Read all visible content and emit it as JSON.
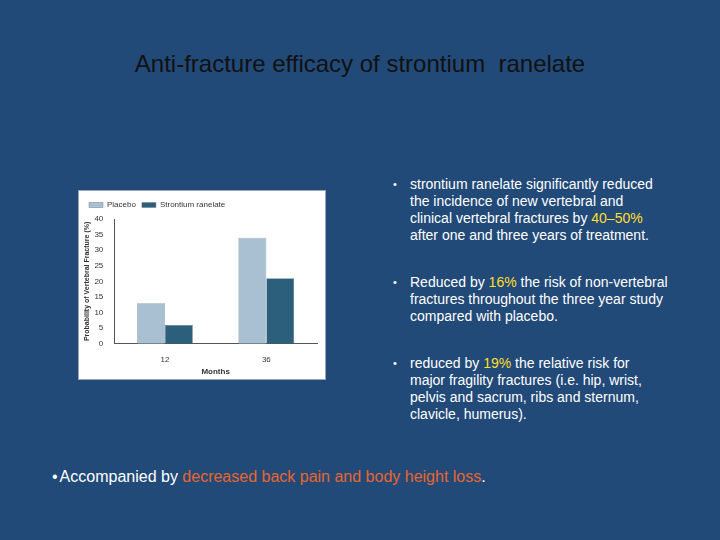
{
  "slide": {
    "title": "Anti-fracture efficacy of strontium  ranelate",
    "bullets": [
      [
        "strontium ranelate significantly reduced the incidence of new vertebral and clinical vertebral fractures by ",
        "40–50%",
        " after one and three years of treatment."
      ],
      [
        "Reduced by ",
        "16%",
        " the risk of non-vertebral fractures throughout the three year study compared with placebo."
      ],
      [
        "reduced by ",
        "19%",
        " the relative risk for major fragility fractures (i.e. hip, wrist, pelvis and sacrum, ribs and sternum, clavicle, humerus)."
      ]
    ],
    "footer": [
      "Accompanied by ",
      "decreased back pain and body height loss",
      "."
    ]
  },
  "chart_data": {
    "type": "bar",
    "categories": [
      "12",
      "36"
    ],
    "series": [
      {
        "name": "Placebo",
        "color": "#a9c0d3",
        "values": [
          13,
          34
        ]
      },
      {
        "name": "Strontium ranelate",
        "color": "#2c5f7c",
        "values": [
          6,
          21
        ]
      }
    ],
    "x_label": "Months",
    "y_label": "Probability of Vertebral Fracture (%)",
    "ylim": [
      0,
      40
    ],
    "yticks": [
      0,
      5,
      10,
      15,
      20,
      25,
      30,
      35,
      40
    ],
    "grid": false,
    "legend": "top"
  }
}
